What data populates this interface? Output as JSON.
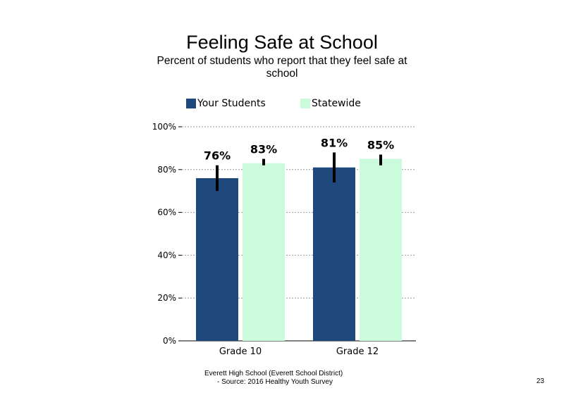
{
  "slide": {
    "footer_line1": "Everett High School (Everett School District)",
    "footer_line2": "- Source: 2016 Healthy Youth Survey",
    "page_number": "23"
  },
  "chart_data": {
    "type": "bar",
    "title": "Feeling Safe at School",
    "subtitle": "Percent of students who report that they feel safe at school",
    "categories": [
      "Grade 10",
      "Grade 12"
    ],
    "series": [
      {
        "name": "Your Students",
        "color": "#1f497d",
        "values": [
          76,
          81
        ],
        "labels": [
          "76%",
          "81%"
        ],
        "error_low": [
          70,
          74
        ],
        "error_high": [
          82,
          88
        ]
      },
      {
        "name": "Statewide",
        "color": "#ccfadc",
        "values": [
          83,
          85
        ],
        "labels": [
          "83%",
          "85%"
        ],
        "error_low": [
          82,
          82
        ],
        "error_high": [
          85,
          87
        ]
      }
    ],
    "ylim": [
      0,
      100
    ],
    "yticks": [
      0,
      20,
      40,
      60,
      80,
      100
    ],
    "ytick_labels": [
      "0%",
      "20%",
      "40%",
      "60%",
      "80%",
      "100%"
    ],
    "xlabel": "",
    "ylabel": "",
    "grid": "horizontal dotted",
    "legend": "top"
  }
}
